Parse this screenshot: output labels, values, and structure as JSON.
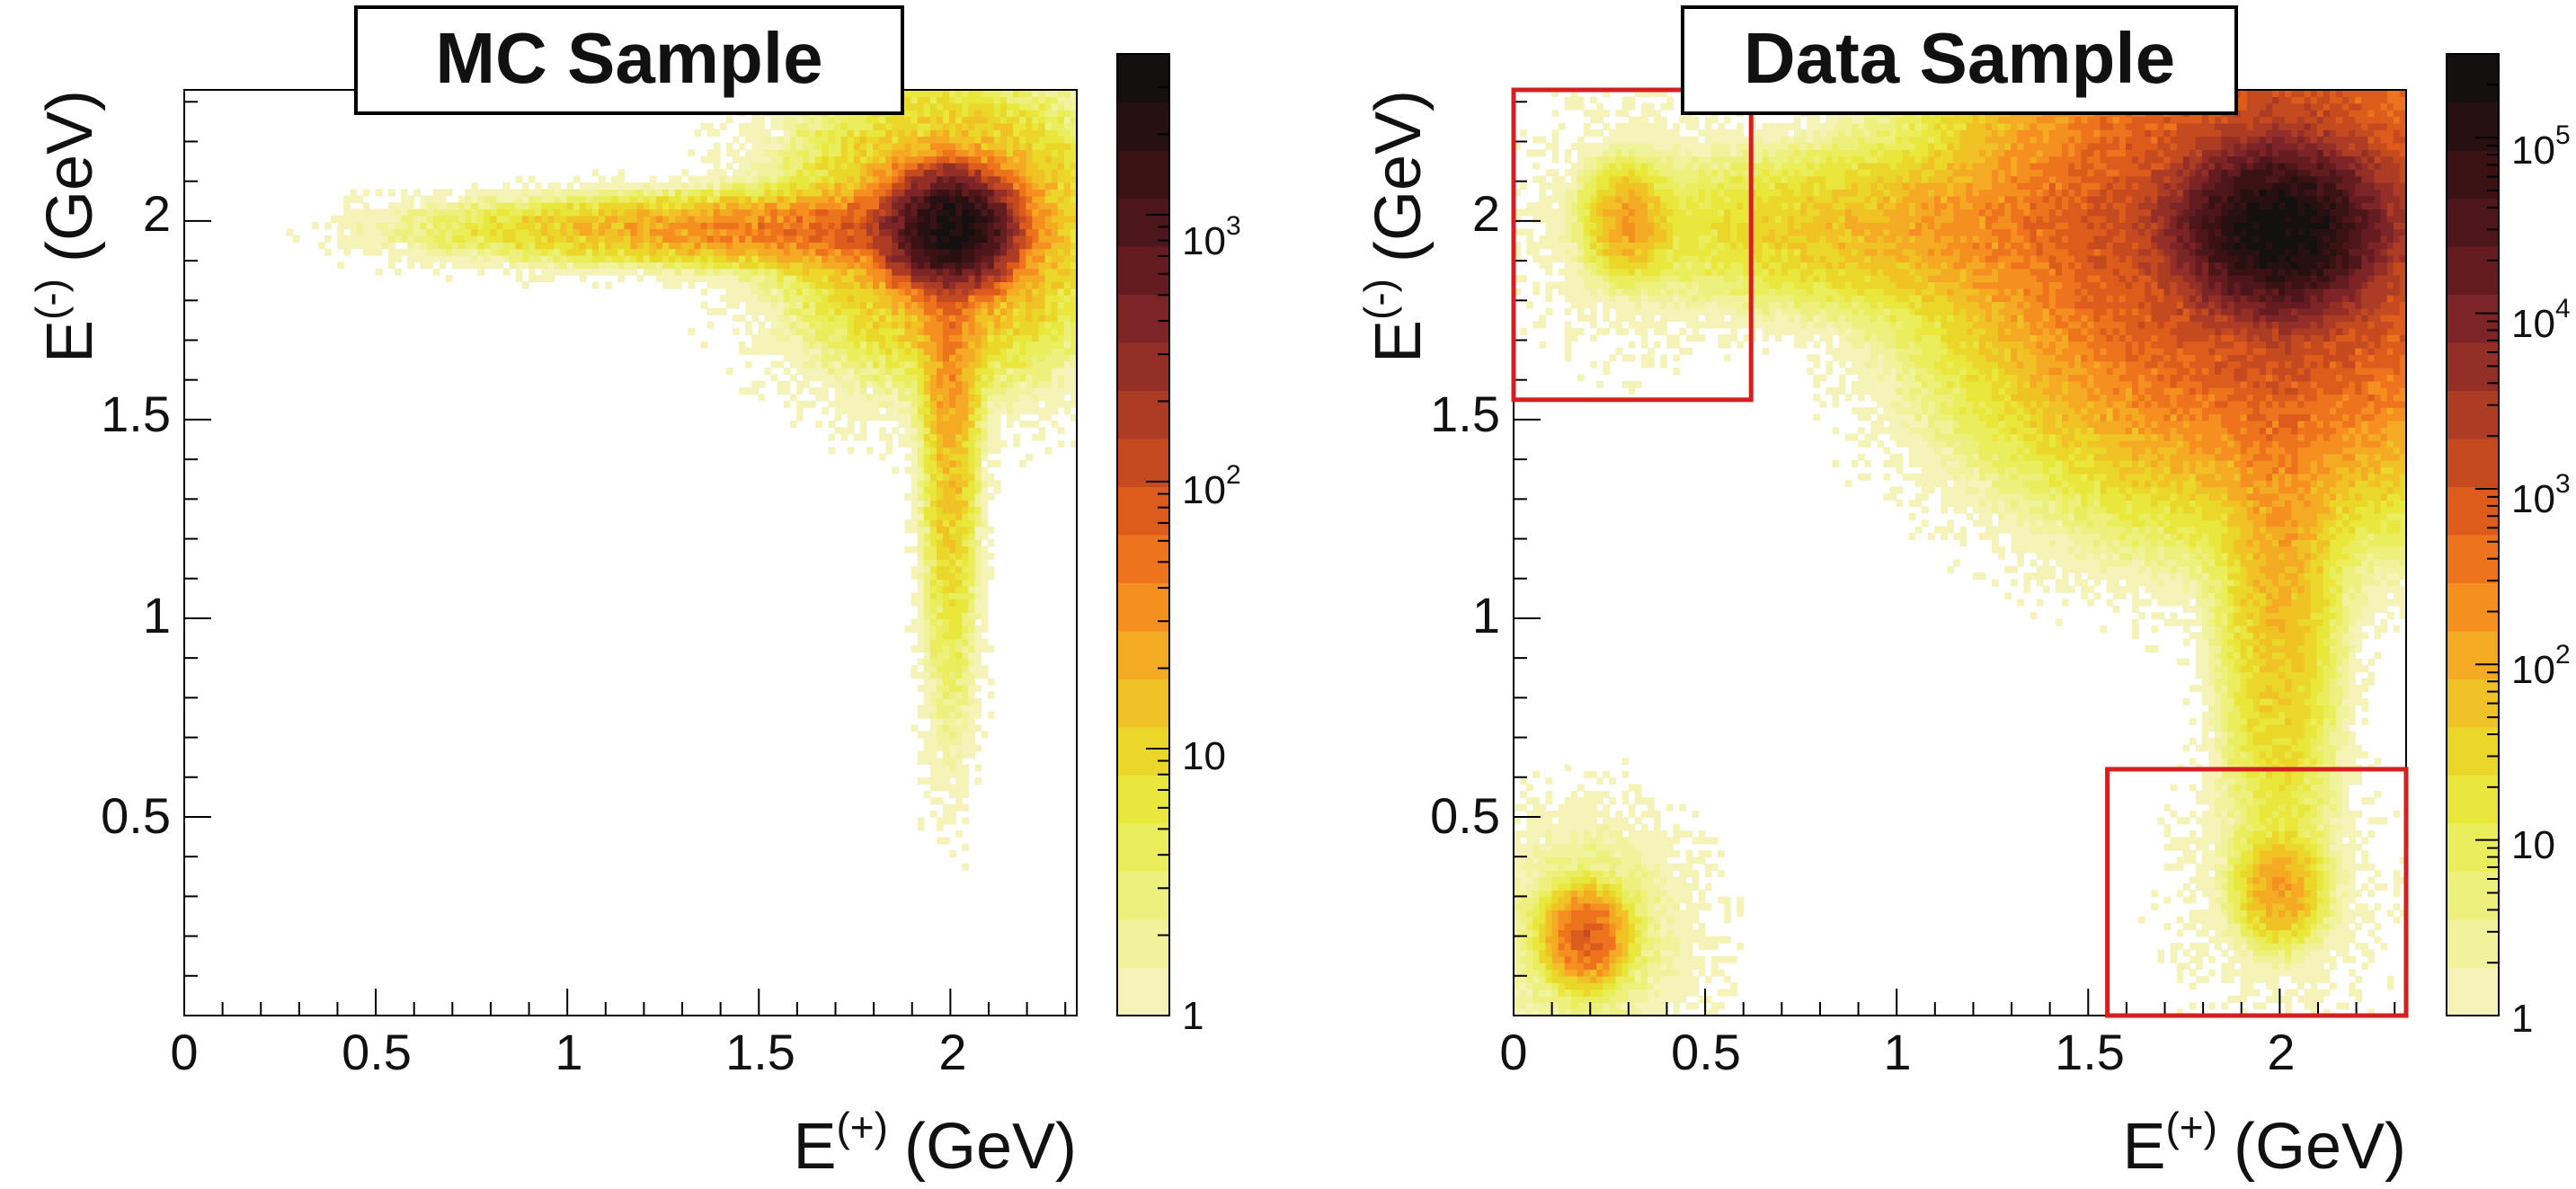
{
  "chart_data": [
    {
      "type": "heatmap",
      "title": "MC Sample",
      "xlabel": "E",
      "xlabel_sup": "(+)",
      "xlabel_unit": "(GeV)",
      "ylabel": "E",
      "ylabel_sup": "(-)",
      "ylabel_unit": "(GeV)",
      "xlim": [
        0,
        2.33
      ],
      "ylim": [
        0,
        2.33
      ],
      "x_ticks": [
        0,
        0.5,
        1,
        1.5,
        2
      ],
      "x_tick_labels": [
        "0",
        "0.5",
        "1",
        "1.5",
        "2"
      ],
      "y_ticks": [
        0.5,
        1,
        1.5,
        2
      ],
      "y_tick_labels": [
        "0.5",
        "1",
        "1.5",
        "2"
      ],
      "z_scale": "log",
      "z_range": [
        1,
        4000
      ],
      "colorbar_ticks": [
        {
          "value": 1,
          "base": "1",
          "exp": ""
        },
        {
          "value": 10,
          "base": "10",
          "exp": ""
        },
        {
          "value": 100,
          "base": "10",
          "exp": "2"
        },
        {
          "value": 1000,
          "base": "10",
          "exp": "3"
        }
      ],
      "density_features": [
        {
          "kind": "peak",
          "x": 2.0,
          "y": 1.98,
          "sx": 0.07,
          "sy": 0.06,
          "peak": 3500,
          "label": "main peak"
        },
        {
          "kind": "horizontal-band",
          "y": 1.98,
          "x_from": 0.15,
          "x_to": 2.15,
          "width": 0.045,
          "peak": 120,
          "label": "E(-) ≈ 2 tail"
        },
        {
          "kind": "vertical-band",
          "x": 2.0,
          "y_from": 0.2,
          "y_to": 2.15,
          "width": 0.04,
          "peak": 60,
          "label": "E(+) ≈ 2 tail"
        }
      ],
      "regions": []
    },
    {
      "type": "heatmap",
      "title": "Data Sample",
      "xlabel": "E",
      "xlabel_sup": "(+)",
      "xlabel_unit": "(GeV)",
      "ylabel": "E",
      "ylabel_sup": "(-)",
      "ylabel_unit": "(GeV)",
      "xlim": [
        0,
        2.33
      ],
      "ylim": [
        0,
        2.33
      ],
      "x_ticks": [
        0,
        0.5,
        1,
        1.5,
        2
      ],
      "x_tick_labels": [
        "0",
        "0.5",
        "1",
        "1.5",
        "2"
      ],
      "y_ticks": [
        0.5,
        1,
        1.5,
        2
      ],
      "y_tick_labels": [
        "0.5",
        "1",
        "1.5",
        "2"
      ],
      "z_scale": "log",
      "z_range": [
        1,
        300000
      ],
      "colorbar_ticks": [
        {
          "value": 1,
          "base": "1",
          "exp": ""
        },
        {
          "value": 10,
          "base": "10",
          "exp": ""
        },
        {
          "value": 100,
          "base": "10",
          "exp": "2"
        },
        {
          "value": 1000,
          "base": "10",
          "exp": "3"
        },
        {
          "value": 10000,
          "base": "10",
          "exp": "4"
        },
        {
          "value": 100000,
          "base": "10",
          "exp": "5"
        }
      ],
      "density_features": [
        {
          "kind": "peak",
          "x": 2.0,
          "y": 1.98,
          "sx": 0.1,
          "sy": 0.08,
          "peak": 250000,
          "label": "main peak"
        },
        {
          "kind": "horizontal-band",
          "y": 1.98,
          "x_from": 0.0,
          "x_to": 2.33,
          "width": 0.09,
          "peak": 800,
          "label": "E(-) ≈ 2 band"
        },
        {
          "kind": "vertical-band",
          "x": 2.0,
          "y_from": 0.0,
          "y_to": 2.33,
          "width": 0.07,
          "peak": 600,
          "label": "E(+) ≈ 2 band"
        },
        {
          "kind": "peak",
          "x": 0.3,
          "y": 2.0,
          "sx": 0.05,
          "sy": 0.06,
          "peak": 150,
          "label": "upper-left blob"
        },
        {
          "kind": "peak",
          "x": 2.0,
          "y": 0.32,
          "sx": 0.05,
          "sy": 0.06,
          "peak": 150,
          "label": "lower-right blob"
        },
        {
          "kind": "peak",
          "x": 0.19,
          "y": 0.2,
          "sx": 0.045,
          "sy": 0.05,
          "peak": 800,
          "label": "lower-left blob"
        }
      ],
      "regions": [
        {
          "x1": 0.0,
          "x2": 0.62,
          "y1": 1.55,
          "y2": 2.33,
          "color": "#d42020",
          "label": "signal region (upper-left)"
        },
        {
          "x1": 1.55,
          "x2": 2.33,
          "y1": 0.0,
          "y2": 0.62,
          "color": "#d42020",
          "label": "signal region (lower-right)"
        }
      ]
    }
  ],
  "colors": {
    "palette": [
      "#f5f3b8",
      "#f1f29c",
      "#eef07d",
      "#eaed5c",
      "#e9e63c",
      "#ebd62a",
      "#f0c225",
      "#f4aa22",
      "#f48f20",
      "#ee731d",
      "#dd5c1c",
      "#c54a1f",
      "#ac3d24",
      "#932f27",
      "#7c2426",
      "#651c20",
      "#4d161a",
      "#3a1214",
      "#261010",
      "#141010"
    ],
    "region_box": "#d42020",
    "frame": "#000000"
  }
}
